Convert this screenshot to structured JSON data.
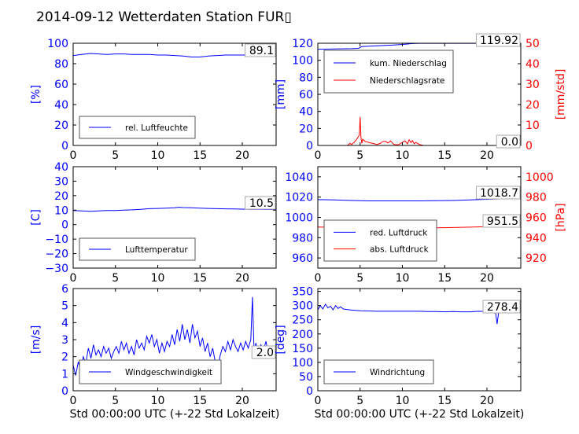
{
  "title": "2014-09-12 Wetterdaten Station FUR▯",
  "chart_data": [
    {
      "id": "humidity",
      "type": "line",
      "xlim": [
        0,
        24
      ],
      "xticks": [
        0,
        5,
        10,
        15,
        20
      ],
      "ylim": [
        0,
        100
      ],
      "yticks": [
        0,
        20,
        40,
        60,
        80,
        100
      ],
      "ylabel": "[%]",
      "xlabel": "",
      "grid": false,
      "legend_placement": "lower-center",
      "value_box": "89.1",
      "series": [
        {
          "name": "rel. Luftfeuchte",
          "axis": "left",
          "color": "#0000ff",
          "x": [
            0,
            0.5,
            1,
            2,
            3,
            4,
            5,
            6,
            7,
            8,
            9,
            10,
            11,
            12,
            13,
            14,
            15,
            16,
            17,
            18,
            19,
            20,
            21,
            22,
            23,
            24
          ],
          "y": [
            88,
            88.5,
            89,
            90,
            89.5,
            89,
            89.5,
            89.5,
            89,
            89,
            89,
            88.5,
            88.5,
            88,
            87.5,
            86.5,
            86.5,
            87.5,
            88,
            88.5,
            88.5,
            88.5,
            88.5,
            88.5,
            89,
            89.1
          ]
        }
      ]
    },
    {
      "id": "precipitation",
      "type": "line",
      "xlim": [
        0,
        24
      ],
      "xticks": [
        0,
        5,
        10,
        15,
        20
      ],
      "ylim": [
        0,
        120
      ],
      "yticks": [
        0,
        20,
        40,
        60,
        80,
        100,
        120
      ],
      "ylabel": "[mm]",
      "y2lim": [
        0,
        50
      ],
      "y2ticks": [
        0,
        10,
        20,
        30,
        40,
        50
      ],
      "y2label": "[mm/std]",
      "xlabel": "",
      "grid": false,
      "legend_placement": "upper-left",
      "value_box": "119.92",
      "value_box2": "0.0",
      "series": [
        {
          "name": "kum. Niederschlag",
          "axis": "left",
          "color": "#0000ff",
          "x": [
            0,
            2,
            4,
            4.8,
            5.0,
            5.2,
            6,
            7,
            8,
            9,
            10,
            10.5,
            11,
            11.5,
            12,
            24
          ],
          "y": [
            113,
            113.3,
            113.6,
            114,
            115,
            116,
            116.5,
            117,
            117.5,
            118,
            118.6,
            119,
            119.5,
            119.8,
            119.92,
            119.92
          ]
        },
        {
          "name": "Niederschlagsrate",
          "axis": "right",
          "color": "#ff0000",
          "x": [
            0,
            3.5,
            3.8,
            4.0,
            4.3,
            4.6,
            4.9,
            5.0,
            5.1,
            5.2,
            5.3,
            5.6,
            6.0,
            6.5,
            7.0,
            7.4,
            7.6,
            8.0,
            8.3,
            8.6,
            9.0,
            9.5,
            10.0,
            10.3,
            10.6,
            10.8,
            11.0,
            11.2,
            11.4,
            11.6,
            12.0,
            12.5,
            24
          ],
          "y": [
            0,
            0,
            1,
            0.5,
            1.5,
            3,
            5,
            14,
            4,
            1,
            3,
            2,
            1.5,
            1,
            0.5,
            1,
            1.8,
            2,
            1.2,
            2.2,
            0.5,
            0.3,
            1.5,
            2.2,
            0.8,
            2.8,
            1.4,
            2.4,
            0.8,
            1.5,
            0.5,
            0,
            0
          ]
        }
      ]
    },
    {
      "id": "temperature",
      "type": "line",
      "xlim": [
        0,
        24
      ],
      "xticks": [
        0,
        5,
        10,
        15,
        20
      ],
      "ylim": [
        -30,
        40
      ],
      "yticks": [
        -30,
        -20,
        -10,
        0,
        10,
        20,
        30,
        40
      ],
      "ylabel": "[C]",
      "xlabel": "",
      "grid": false,
      "legend_placement": "lower-center",
      "value_box": "10.5",
      "series": [
        {
          "name": "Lufttemperatur",
          "axis": "left",
          "color": "#0000ff",
          "x": [
            0,
            1,
            2,
            3,
            4,
            5,
            6,
            7,
            8,
            9,
            10,
            11,
            12,
            12.5,
            13,
            14,
            15,
            16,
            17,
            18,
            19,
            20,
            21,
            22,
            23,
            24
          ],
          "y": [
            9.8,
            9.5,
            9.2,
            9.5,
            9.8,
            9.8,
            10,
            10.2,
            10.6,
            11,
            11.2,
            11.4,
            11.6,
            12,
            11.8,
            11.6,
            11.4,
            11.2,
            11,
            10.9,
            10.8,
            10.7,
            10.6,
            10.6,
            10.5,
            10.5
          ]
        }
      ]
    },
    {
      "id": "pressure",
      "type": "line",
      "xlim": [
        0,
        24
      ],
      "xticks": [
        0,
        5,
        10,
        15,
        20
      ],
      "ylim": [
        950,
        1050
      ],
      "yticks": [
        960,
        980,
        1000,
        1020,
        1040
      ],
      "ylabel": "",
      "y2lim": [
        910,
        1010
      ],
      "y2ticks": [
        920,
        940,
        960,
        980,
        1000
      ],
      "y2label": "[hPa]",
      "xlabel": "",
      "grid": false,
      "legend_placement": "lower-center",
      "value_box": "1018.7",
      "value_box2": "951.5",
      "series": [
        {
          "name": "red. Luftdruck",
          "axis": "left",
          "color": "#0000ff",
          "x": [
            0,
            2,
            4,
            6,
            8,
            10,
            12,
            14,
            16,
            18,
            20,
            22,
            24
          ],
          "y": [
            1017.5,
            1017.2,
            1016.7,
            1016.3,
            1016.3,
            1016.3,
            1016.3,
            1016.4,
            1016.7,
            1017.2,
            1017.8,
            1018.3,
            1018.7
          ]
        },
        {
          "name": "abs. Luftdruck",
          "axis": "right",
          "color": "#ff0000",
          "x": [
            0,
            2,
            4,
            6,
            8,
            10,
            12,
            14,
            16,
            18,
            20,
            22,
            24
          ],
          "y": [
            950.5,
            950.2,
            949.8,
            949.5,
            949.5,
            949.5,
            949.6,
            949.7,
            950,
            950.4,
            950.9,
            951.2,
            951.5
          ]
        }
      ]
    },
    {
      "id": "wind_speed",
      "type": "line",
      "xlim": [
        0,
        24
      ],
      "xticks": [
        0,
        5,
        10,
        15,
        20
      ],
      "ylim": [
        0,
        6
      ],
      "yticks": [
        0,
        1,
        2,
        3,
        4,
        5,
        6
      ],
      "ylabel": "[m/s]",
      "xlabel": "Std 00:00:00 UTC (+-22 Std Lokalzeit)",
      "grid": false,
      "legend_placement": "lower-center",
      "value_box": "2.0",
      "series": [
        {
          "name": "Windgeschwindigkeit",
          "axis": "left",
          "color": "#0000ff",
          "x": [
            0,
            0.3,
            0.6,
            0.9,
            1.2,
            1.5,
            1.8,
            2.1,
            2.4,
            2.7,
            3.0,
            3.3,
            3.6,
            3.9,
            4.2,
            4.5,
            4.8,
            5.1,
            5.4,
            5.7,
            6.0,
            6.3,
            6.6,
            6.9,
            7.2,
            7.5,
            7.8,
            8.1,
            8.4,
            8.7,
            9.0,
            9.3,
            9.6,
            9.9,
            10.2,
            10.5,
            10.8,
            11.1,
            11.4,
            11.7,
            12.0,
            12.3,
            12.6,
            12.9,
            13.2,
            13.5,
            13.8,
            14.1,
            14.4,
            14.7,
            15.0,
            15.3,
            15.6,
            15.9,
            16.2,
            16.5,
            16.8,
            17.1,
            17.4,
            17.7,
            18.0,
            18.3,
            18.6,
            18.9,
            19.2,
            19.5,
            19.8,
            20.1,
            20.4,
            20.7,
            21.0,
            21.2,
            21.4,
            21.6,
            21.9,
            22.2,
            22.5,
            22.8,
            23.1,
            23.4,
            23.7,
            24.0
          ],
          "y": [
            1.5,
            0.9,
            1.7,
            1.2,
            2.0,
            1.6,
            2.5,
            1.9,
            2.7,
            2.1,
            2.4,
            2.0,
            2.6,
            2.2,
            2.5,
            1.9,
            2.3,
            2.6,
            2.2,
            2.9,
            2.4,
            2.8,
            2.2,
            2.6,
            2.1,
            3.0,
            2.5,
            2.8,
            2.4,
            3.2,
            2.8,
            3.3,
            2.6,
            3.0,
            2.2,
            2.8,
            2.3,
            2.9,
            2.6,
            3.3,
            2.7,
            3.6,
            2.9,
            3.9,
            3.0,
            3.6,
            2.8,
            3.9,
            3.1,
            3.5,
            2.6,
            3.1,
            2.3,
            2.8,
            2.0,
            2.5,
            1.7,
            1.3,
            2.1,
            2.6,
            2.3,
            2.9,
            2.4,
            3.0,
            2.6,
            2.3,
            2.8,
            2.4,
            2.9,
            2.5,
            3.0,
            5.5,
            2.3,
            2.8,
            2.2,
            2.7,
            2.4,
            2.9,
            2.1,
            2.4,
            2.2,
            2.0
          ]
        }
      ]
    },
    {
      "id": "wind_direction",
      "type": "line",
      "xlim": [
        0,
        24
      ],
      "xticks": [
        0,
        5,
        10,
        15,
        20
      ],
      "ylim": [
        0,
        360
      ],
      "yticks": [
        0,
        50,
        100,
        150,
        200,
        250,
        300,
        350
      ],
      "ylabel": "[deg]",
      "xlabel": "Std 00:00:00 UTC (+-22 Std Lokalzeit)",
      "grid": false,
      "legend_placement": "lower-center",
      "value_box": "278.4",
      "series": [
        {
          "name": "Windrichtung",
          "axis": "left",
          "color": "#0000ff",
          "x": [
            0,
            0.3,
            0.6,
            0.9,
            1.2,
            1.5,
            1.8,
            2.1,
            2.4,
            2.7,
            3.0,
            3.5,
            4.0,
            5.0,
            6.0,
            7.0,
            8.0,
            9.0,
            10.0,
            11.0,
            12.0,
            13.0,
            14.0,
            15.0,
            16.0,
            17.0,
            18.0,
            19.0,
            20.0,
            21.0,
            21.2,
            21.4,
            21.6,
            22.0,
            23.0,
            24.0
          ],
          "y": [
            285,
            300,
            288,
            305,
            292,
            298,
            285,
            300,
            290,
            296,
            288,
            286,
            284,
            282,
            281,
            280,
            280,
            280,
            280,
            280,
            280,
            279,
            279,
            278,
            279,
            278,
            278,
            280,
            279,
            279,
            235,
            279,
            280,
            279,
            278,
            278.4
          ]
        }
      ]
    }
  ]
}
